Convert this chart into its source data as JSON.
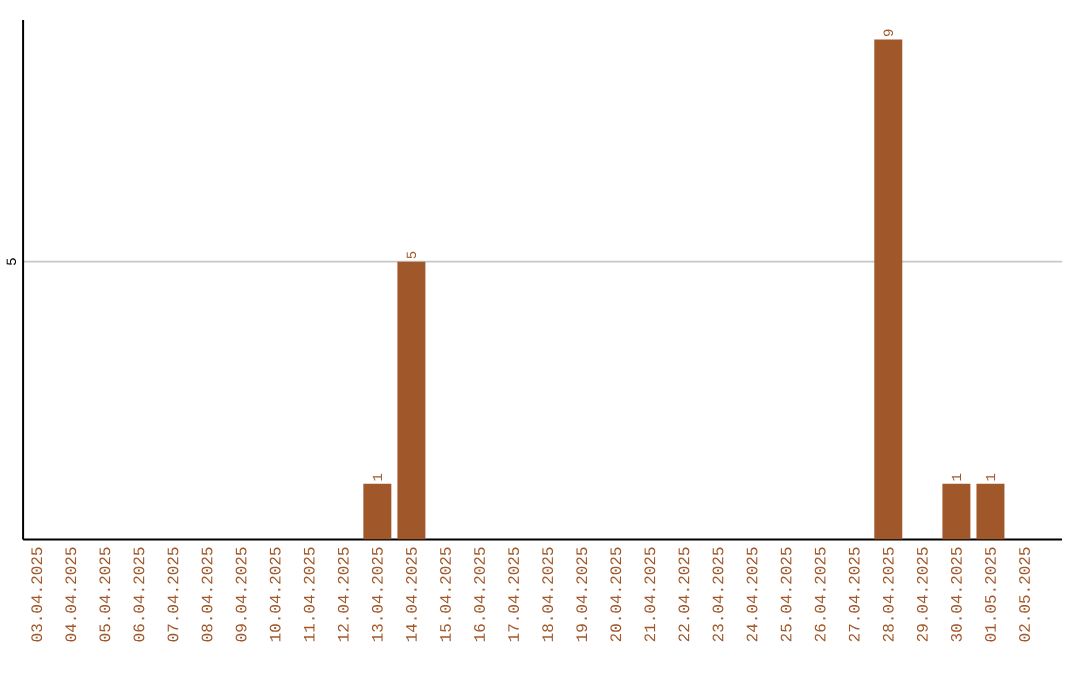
{
  "chart_data": {
    "type": "bar",
    "categories": [
      "03.04.2025",
      "04.04.2025",
      "05.04.2025",
      "06.04.2025",
      "07.04.2025",
      "08.04.2025",
      "09.04.2025",
      "10.04.2025",
      "11.04.2025",
      "12.04.2025",
      "13.04.2025",
      "14.04.2025",
      "15.04.2025",
      "16.04.2025",
      "17.04.2025",
      "18.04.2025",
      "19.04.2025",
      "20.04.2025",
      "21.04.2025",
      "22.04.2025",
      "23.04.2025",
      "24.04.2025",
      "25.04.2025",
      "26.04.2025",
      "27.04.2025",
      "28.04.2025",
      "29.04.2025",
      "30.04.2025",
      "01.05.2025",
      "02.05.2025"
    ],
    "values": [
      0,
      0,
      0,
      0,
      0,
      0,
      0,
      0,
      0,
      0,
      1,
      5,
      0,
      0,
      0,
      0,
      0,
      0,
      0,
      0,
      0,
      0,
      0,
      0,
      0,
      9,
      0,
      1,
      1,
      0
    ],
    "value_labels": [
      null,
      null,
      null,
      null,
      null,
      null,
      null,
      null,
      null,
      null,
      "1",
      "5",
      null,
      null,
      null,
      null,
      null,
      null,
      null,
      null,
      null,
      null,
      null,
      null,
      null,
      "9",
      null,
      "1",
      "1",
      null
    ],
    "color": "#a0572a",
    "ylim": [
      0,
      9.35
    ],
    "yticks": [
      5
    ],
    "grid": "y"
  }
}
